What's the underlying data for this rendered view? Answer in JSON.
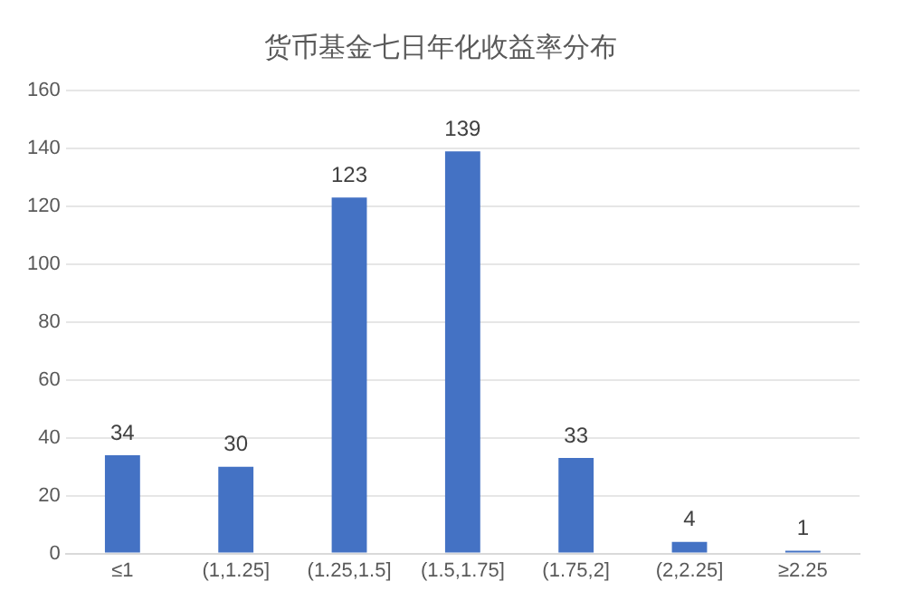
{
  "chart_data": {
    "type": "bar",
    "title": "货币基金七日年化收益率分布",
    "categories": [
      "≤1",
      "(1,1.25]",
      "(1.25,1.5]",
      "(1.5,1.75]",
      "(1.75,2]",
      "(2,2.25]",
      "≥2.25"
    ],
    "values": [
      34,
      30,
      123,
      139,
      33,
      4,
      1
    ],
    "color": "#4472c4",
    "ylim": [
      0,
      160
    ],
    "yticks": [
      0,
      20,
      40,
      60,
      80,
      100,
      120,
      140,
      160
    ],
    "grid": "y",
    "data_labels": true,
    "legend": false
  }
}
